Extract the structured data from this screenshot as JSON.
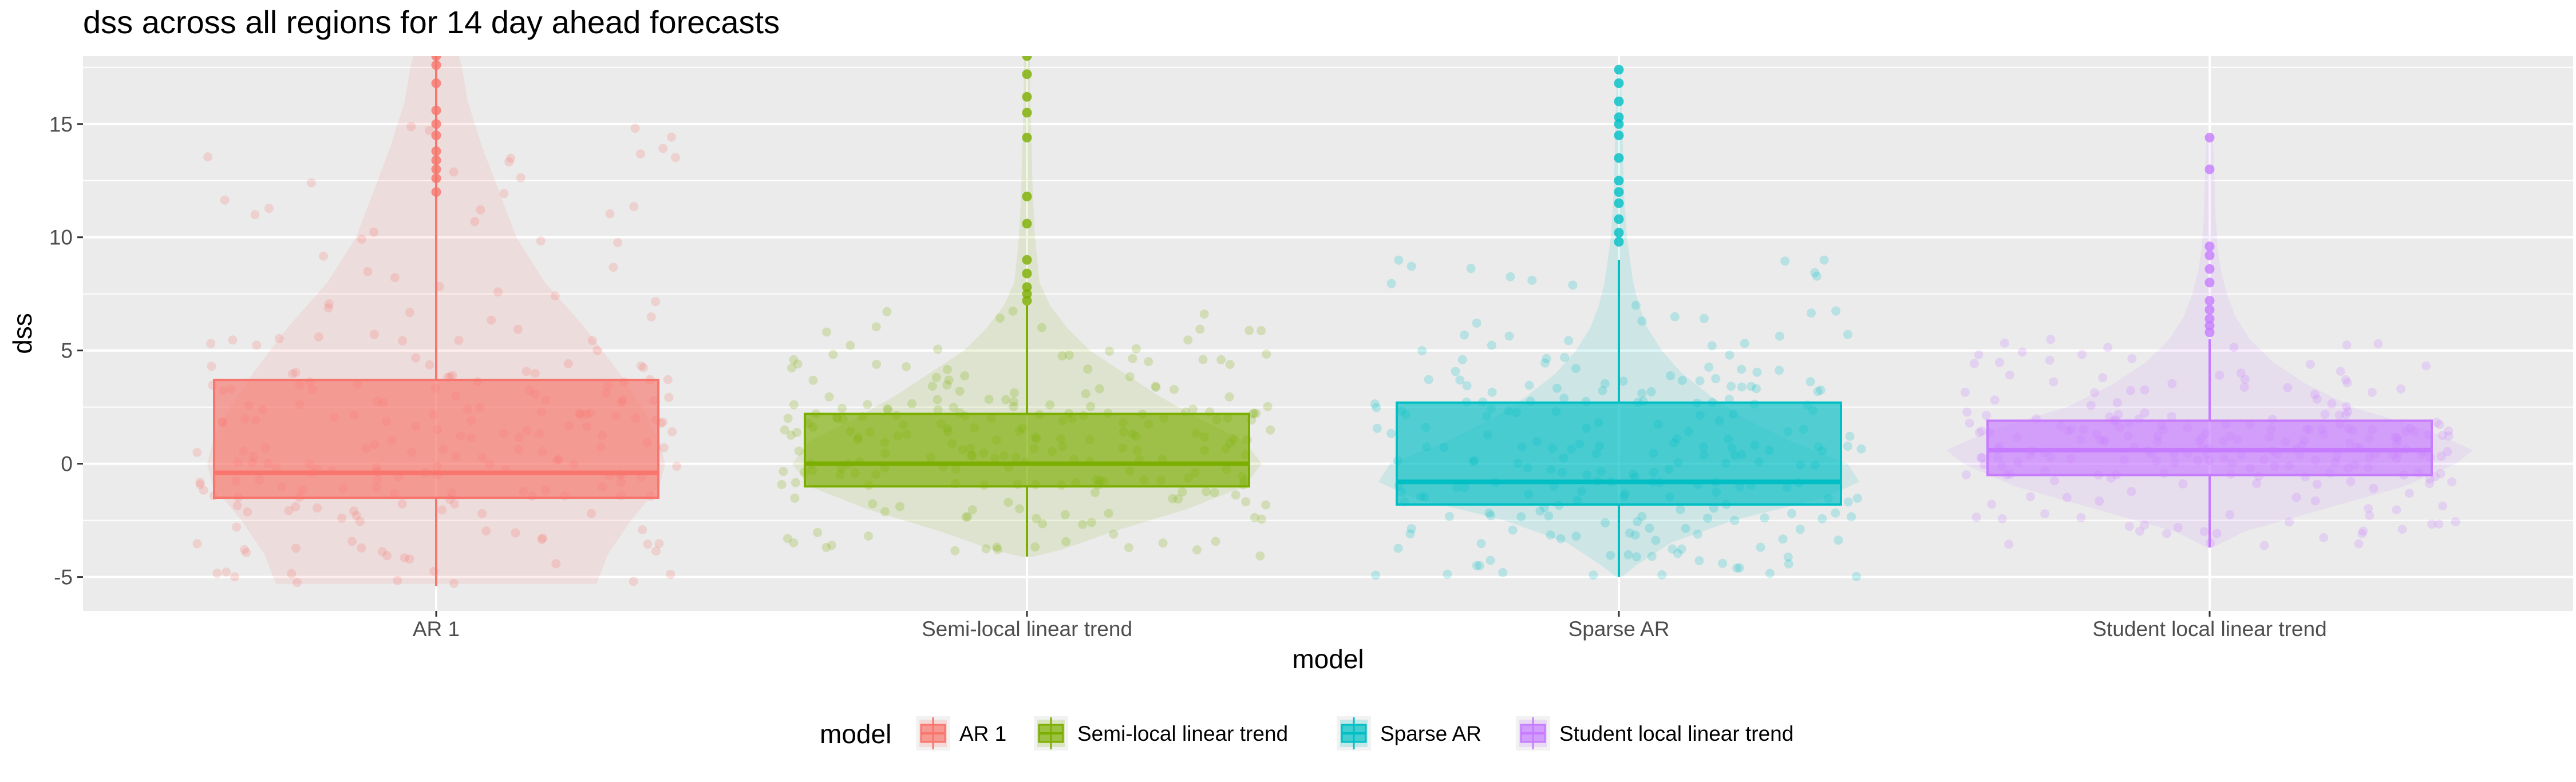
{
  "chart_data": {
    "type": "box-violin-jitter",
    "title": "dss across all regions for 14 day ahead forecasts",
    "xlabel": "model",
    "ylabel": "dss",
    "ylim": [
      -6.5,
      18
    ],
    "yticks": [
      -5,
      0,
      5,
      10,
      15
    ],
    "ytick_labels": [
      "-5",
      "0",
      "5",
      "10",
      "15"
    ],
    "grid": true,
    "legend": {
      "title": "model",
      "position": "bottom"
    },
    "categories": [
      "AR 1",
      "Semi-local linear trend",
      "Sparse AR",
      "Student local linear trend"
    ],
    "series": [
      {
        "name": "AR 1",
        "color": "#F8766D",
        "box": {
          "q1": -1.5,
          "median": -0.4,
          "q3": 3.7,
          "whisker_low": -5.4,
          "whisker_high": 18
        },
        "outliers": [
          12.0,
          12.6,
          13.0,
          13.4,
          13.8,
          14.5,
          15.0,
          15.6,
          16.8,
          17.6,
          18.0
        ]
      },
      {
        "name": "Semi-local linear trend",
        "color": "#7CAE00",
        "box": {
          "q1": -1.0,
          "median": 0.0,
          "q3": 2.2,
          "whisker_low": -4.1,
          "whisker_high": 7.0
        },
        "outliers": [
          7.2,
          7.5,
          7.8,
          8.4,
          9.0,
          10.6,
          11.8,
          14.4,
          15.5,
          16.2,
          17.2,
          18.0
        ]
      },
      {
        "name": "Sparse AR",
        "color": "#00BFC4",
        "box": {
          "q1": -1.8,
          "median": -0.8,
          "q3": 2.7,
          "whisker_low": -5.0,
          "whisker_high": 9.0
        },
        "outliers": [
          9.8,
          10.2,
          10.8,
          11.5,
          12.0,
          12.5,
          13.5,
          14.5,
          15.0,
          15.3,
          16.0,
          16.8,
          17.4
        ]
      },
      {
        "name": "Student local linear trend",
        "color": "#C77CFF",
        "box": {
          "q1": -0.5,
          "median": 0.6,
          "q3": 1.9,
          "whisker_low": -3.7,
          "whisker_high": 5.5
        },
        "outliers": [
          5.8,
          6.1,
          6.4,
          6.8,
          7.2,
          8.0,
          8.6,
          9.2,
          9.6,
          13.0,
          14.4
        ]
      }
    ]
  }
}
